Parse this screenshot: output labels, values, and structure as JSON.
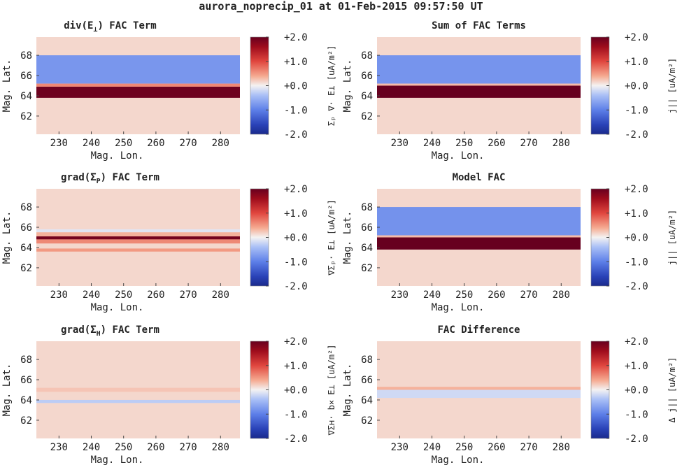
{
  "figure_title": "aurora_noprecip_01 at 01-Feb-2015 09:57:50 UT",
  "colors": {
    "neg": "#1f3da6",
    "zero": "#f3f3f3",
    "pos": "#7a0010",
    "background": "#ede3e6"
  },
  "chart_data": [
    {
      "type": "heatmap",
      "title": "div(E⊥) FAC Term",
      "title_main": "div(E",
      "title_sub": "⊥",
      "title_tail": ") FAC Term",
      "xlabel": "Mag. Lon.",
      "ylabel": "Mag. Lat.",
      "xlim": [
        223,
        286
      ],
      "ylim": [
        60.2,
        69.8
      ],
      "x_ticks": [
        "230",
        "240",
        "250",
        "260",
        "270",
        "280"
      ],
      "x_tick_values": [
        230,
        240,
        250,
        260,
        270,
        280
      ],
      "y_ticks": [
        "62",
        "64",
        "66",
        "68"
      ],
      "y_tick_values": [
        62,
        64,
        66,
        68
      ],
      "colorbar_ticks": [
        "+2.0",
        "+1.0",
        "+0.0",
        "-1.0",
        "-2.0"
      ],
      "colorbar_tick_values": [
        2,
        1,
        0,
        -1,
        -2
      ],
      "colorbar_label": "Σₚ ∇· E⊥ [uA/m²]",
      "clim": [
        -2,
        2
      ],
      "background_value": 0.15,
      "bands": [
        {
          "lat_min": 65.2,
          "lat_max": 68.0,
          "value": -0.78
        },
        {
          "lat_min": 63.8,
          "lat_max": 64.9,
          "value": 1.95
        },
        {
          "lat_min": 64.9,
          "lat_max": 65.2,
          "value": 0.6
        }
      ]
    },
    {
      "type": "heatmap",
      "title": "Sum of FAC Terms",
      "title_main": "Sum of FAC Terms",
      "title_sub": "",
      "title_tail": "",
      "xlabel": "Mag. Lon.",
      "ylabel": "Mag. Lat.",
      "xlim": [
        223,
        286
      ],
      "ylim": [
        60.2,
        69.8
      ],
      "x_ticks": [
        "230",
        "240",
        "250",
        "260",
        "270",
        "280"
      ],
      "x_tick_values": [
        230,
        240,
        250,
        260,
        270,
        280
      ],
      "y_ticks": [
        "62",
        "64",
        "66",
        "68"
      ],
      "y_tick_values": [
        62,
        64,
        66,
        68
      ],
      "colorbar_ticks": [
        "+2.0",
        "+1.0",
        "+0.0",
        "-1.0",
        "-2.0"
      ],
      "colorbar_tick_values": [
        2,
        1,
        0,
        -1,
        -2
      ],
      "colorbar_label": "j|| [uA/m²]",
      "clim": [
        -2,
        2
      ],
      "background_value": 0.15,
      "bands": [
        {
          "lat_min": 65.2,
          "lat_max": 68.0,
          "value": -0.8
        },
        {
          "lat_min": 63.8,
          "lat_max": 65.0,
          "value": 2.0
        },
        {
          "lat_min": 65.0,
          "lat_max": 65.2,
          "value": 0.3
        }
      ]
    },
    {
      "type": "heatmap",
      "title": "grad(Σₚ) FAC Term",
      "title_main": "grad(Σ",
      "title_sub": "P",
      "title_tail": ") FAC Term",
      "xlabel": "Mag. Lon.",
      "ylabel": "Mag. Lat.",
      "xlim": [
        223,
        286
      ],
      "ylim": [
        60.2,
        69.8
      ],
      "x_ticks": [
        "230",
        "240",
        "250",
        "260",
        "270",
        "280"
      ],
      "x_tick_values": [
        230,
        240,
        250,
        260,
        270,
        280
      ],
      "y_ticks": [
        "62",
        "64",
        "66",
        "68"
      ],
      "y_tick_values": [
        62,
        64,
        66,
        68
      ],
      "colorbar_ticks": [
        "+2.0",
        "+1.0",
        "+0.0",
        "-1.0",
        "-2.0"
      ],
      "colorbar_tick_values": [
        2,
        1,
        0,
        -1,
        -2
      ],
      "colorbar_label": "∇Σₚ· E⊥ [uA/m²]",
      "clim": [
        -2,
        2
      ],
      "background_value": 0.15,
      "bands": [
        {
          "lat_min": 65.5,
          "lat_max": 65.8,
          "value": -0.1
        },
        {
          "lat_min": 65.1,
          "lat_max": 65.5,
          "value": 0.35
        },
        {
          "lat_min": 64.8,
          "lat_max": 65.1,
          "value": 1.9
        },
        {
          "lat_min": 64.4,
          "lat_max": 64.8,
          "value": 0.6
        },
        {
          "lat_min": 63.6,
          "lat_max": 63.9,
          "value": 0.5
        }
      ]
    },
    {
      "type": "heatmap",
      "title": "Model FAC",
      "title_main": "Model FAC",
      "title_sub": "",
      "title_tail": "",
      "xlabel": "Mag. Lon.",
      "ylabel": "Mag. Lat.",
      "xlim": [
        223,
        286
      ],
      "ylim": [
        60.2,
        69.8
      ],
      "x_ticks": [
        "230",
        "240",
        "250",
        "260",
        "270",
        "280"
      ],
      "x_tick_values": [
        230,
        240,
        250,
        260,
        270,
        280
      ],
      "y_ticks": [
        "62",
        "64",
        "66",
        "68"
      ],
      "y_tick_values": [
        62,
        64,
        66,
        68
      ],
      "colorbar_ticks": [
        "+2.0",
        "+1.0",
        "+0.0",
        "-1.0",
        "-2.0"
      ],
      "colorbar_tick_values": [
        2,
        1,
        0,
        -1,
        -2
      ],
      "colorbar_label": "j|| [uA/m²]",
      "clim": [
        -2,
        2
      ],
      "background_value": 0.15,
      "bands": [
        {
          "lat_min": 65.2,
          "lat_max": 68.0,
          "value": -0.82
        },
        {
          "lat_min": 63.8,
          "lat_max": 65.0,
          "value": 2.0
        },
        {
          "lat_min": 65.0,
          "lat_max": 65.2,
          "value": 0.3
        }
      ]
    },
    {
      "type": "heatmap",
      "title": "grad(Σʜ) FAC Term",
      "title_main": "grad(Σ",
      "title_sub": "H",
      "title_tail": ") FAC Term",
      "xlabel": "Mag. Lon.",
      "ylabel": "Mag. Lat.",
      "xlim": [
        223,
        286
      ],
      "ylim": [
        60.2,
        69.8
      ],
      "x_ticks": [
        "230",
        "240",
        "250",
        "260",
        "270",
        "280"
      ],
      "x_tick_values": [
        230,
        240,
        250,
        260,
        270,
        280
      ],
      "y_ticks": [
        "62",
        "64",
        "66",
        "68"
      ],
      "y_tick_values": [
        62,
        64,
        66,
        68
      ],
      "colorbar_ticks": [
        "+2.0",
        "+1.0",
        "+0.0",
        "-1.0",
        "-2.0"
      ],
      "colorbar_tick_values": [
        2,
        1,
        0,
        -1,
        -2
      ],
      "colorbar_label": "∇Σʜ· b× E⊥ [uA/m²]",
      "clim": [
        -2,
        2
      ],
      "background_value": 0.15,
      "bands": [
        {
          "lat_min": 63.7,
          "lat_max": 64.0,
          "value": -0.3
        },
        {
          "lat_min": 64.8,
          "lat_max": 65.2,
          "value": 0.25
        }
      ]
    },
    {
      "type": "heatmap",
      "title": "FAC Difference",
      "title_main": "FAC Difference",
      "title_sub": "",
      "title_tail": "",
      "xlabel": "Mag. Lon.",
      "ylabel": "Mag. Lat.",
      "xlim": [
        223,
        286
      ],
      "ylim": [
        60.2,
        69.8
      ],
      "x_ticks": [
        "230",
        "240",
        "250",
        "260",
        "270",
        "280"
      ],
      "x_tick_values": [
        230,
        240,
        250,
        260,
        270,
        280
      ],
      "y_ticks": [
        "62",
        "64",
        "66",
        "68"
      ],
      "y_tick_values": [
        62,
        64,
        66,
        68
      ],
      "colorbar_ticks": [
        "+2.0",
        "+1.0",
        "+0.0",
        "-1.0",
        "-2.0"
      ],
      "colorbar_tick_values": [
        2,
        1,
        0,
        -1,
        -2
      ],
      "colorbar_label": "Δ j|| [uA/m²]",
      "clim": [
        -2,
        2
      ],
      "background_value": 0.15,
      "bands": [
        {
          "lat_min": 65.0,
          "lat_max": 65.3,
          "value": 0.35
        },
        {
          "lat_min": 64.2,
          "lat_max": 65.0,
          "value": -0.2
        }
      ]
    }
  ]
}
